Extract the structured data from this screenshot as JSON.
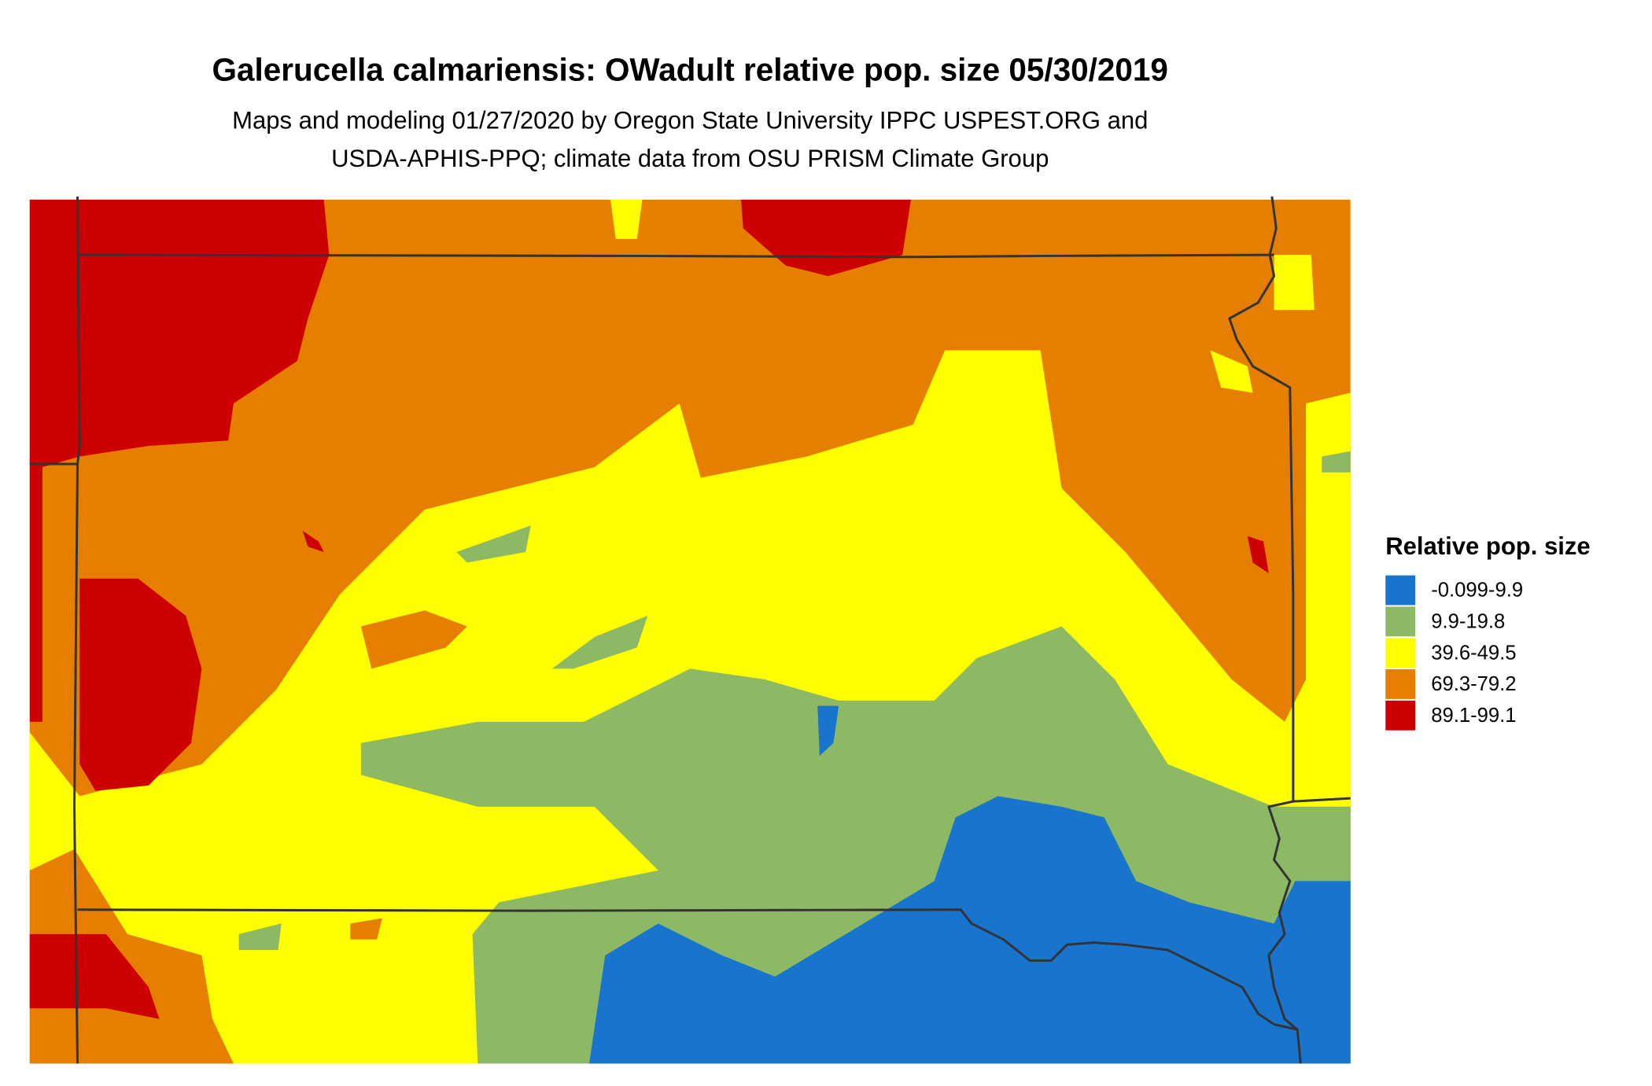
{
  "title": "Galerucella calmariensis: OWadult relative pop. size 05/30/2019",
  "subtitle": [
    "Maps and modeling 01/27/2020 by Oregon State University IPPC USPEST.ORG and",
    "USDA-APHIS-PPQ; climate data from OSU PRISM Climate Group"
  ],
  "legend": {
    "title": "Relative pop. size",
    "items": [
      {
        "label": "-0.099-9.9",
        "color": "#1874cd"
      },
      {
        "label": "9.9-19.8",
        "color": "#8db864"
      },
      {
        "label": "39.6-49.5",
        "color": "#ffff00"
      },
      {
        "label": "69.3-79.2",
        "color": "#e67e00"
      },
      {
        "label": "89.1-99.1",
        "color": "#cd0000"
      }
    ]
  }
}
